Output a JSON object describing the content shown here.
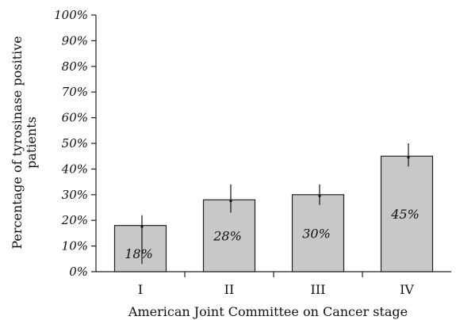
{
  "chart_data": {
    "type": "bar",
    "title": "",
    "xlabel": "American Joint Committee on Cancer stage",
    "ylabel": "Percentage of tyrosinase positive patients",
    "ylabel_lines": [
      "Percentage of tyrosinase positive",
      "patients"
    ],
    "categories": [
      "I",
      "II",
      "III",
      "IV"
    ],
    "values": [
      18,
      28,
      30,
      45
    ],
    "value_labels": [
      "18%",
      "28%",
      "30%",
      "45%"
    ],
    "error_bars": [
      {
        "low": 3,
        "high": 22
      },
      {
        "low": 23,
        "high": 34
      },
      {
        "low": 26,
        "high": 34
      },
      {
        "low": 41,
        "high": 50
      }
    ],
    "ylim": [
      0,
      100
    ],
    "yticks": [
      0,
      10,
      20,
      30,
      40,
      50,
      60,
      70,
      80,
      90,
      100
    ],
    "ytick_labels": [
      "0%",
      "10%",
      "20%",
      "30%",
      "40%",
      "50%",
      "60%",
      "70%",
      "80%",
      "90%",
      "100%"
    ],
    "grid": false,
    "legend": "none",
    "colors": {
      "bar_fill": "#c8c8c8",
      "bar_stroke": "#222222",
      "axis": "#222222"
    }
  }
}
